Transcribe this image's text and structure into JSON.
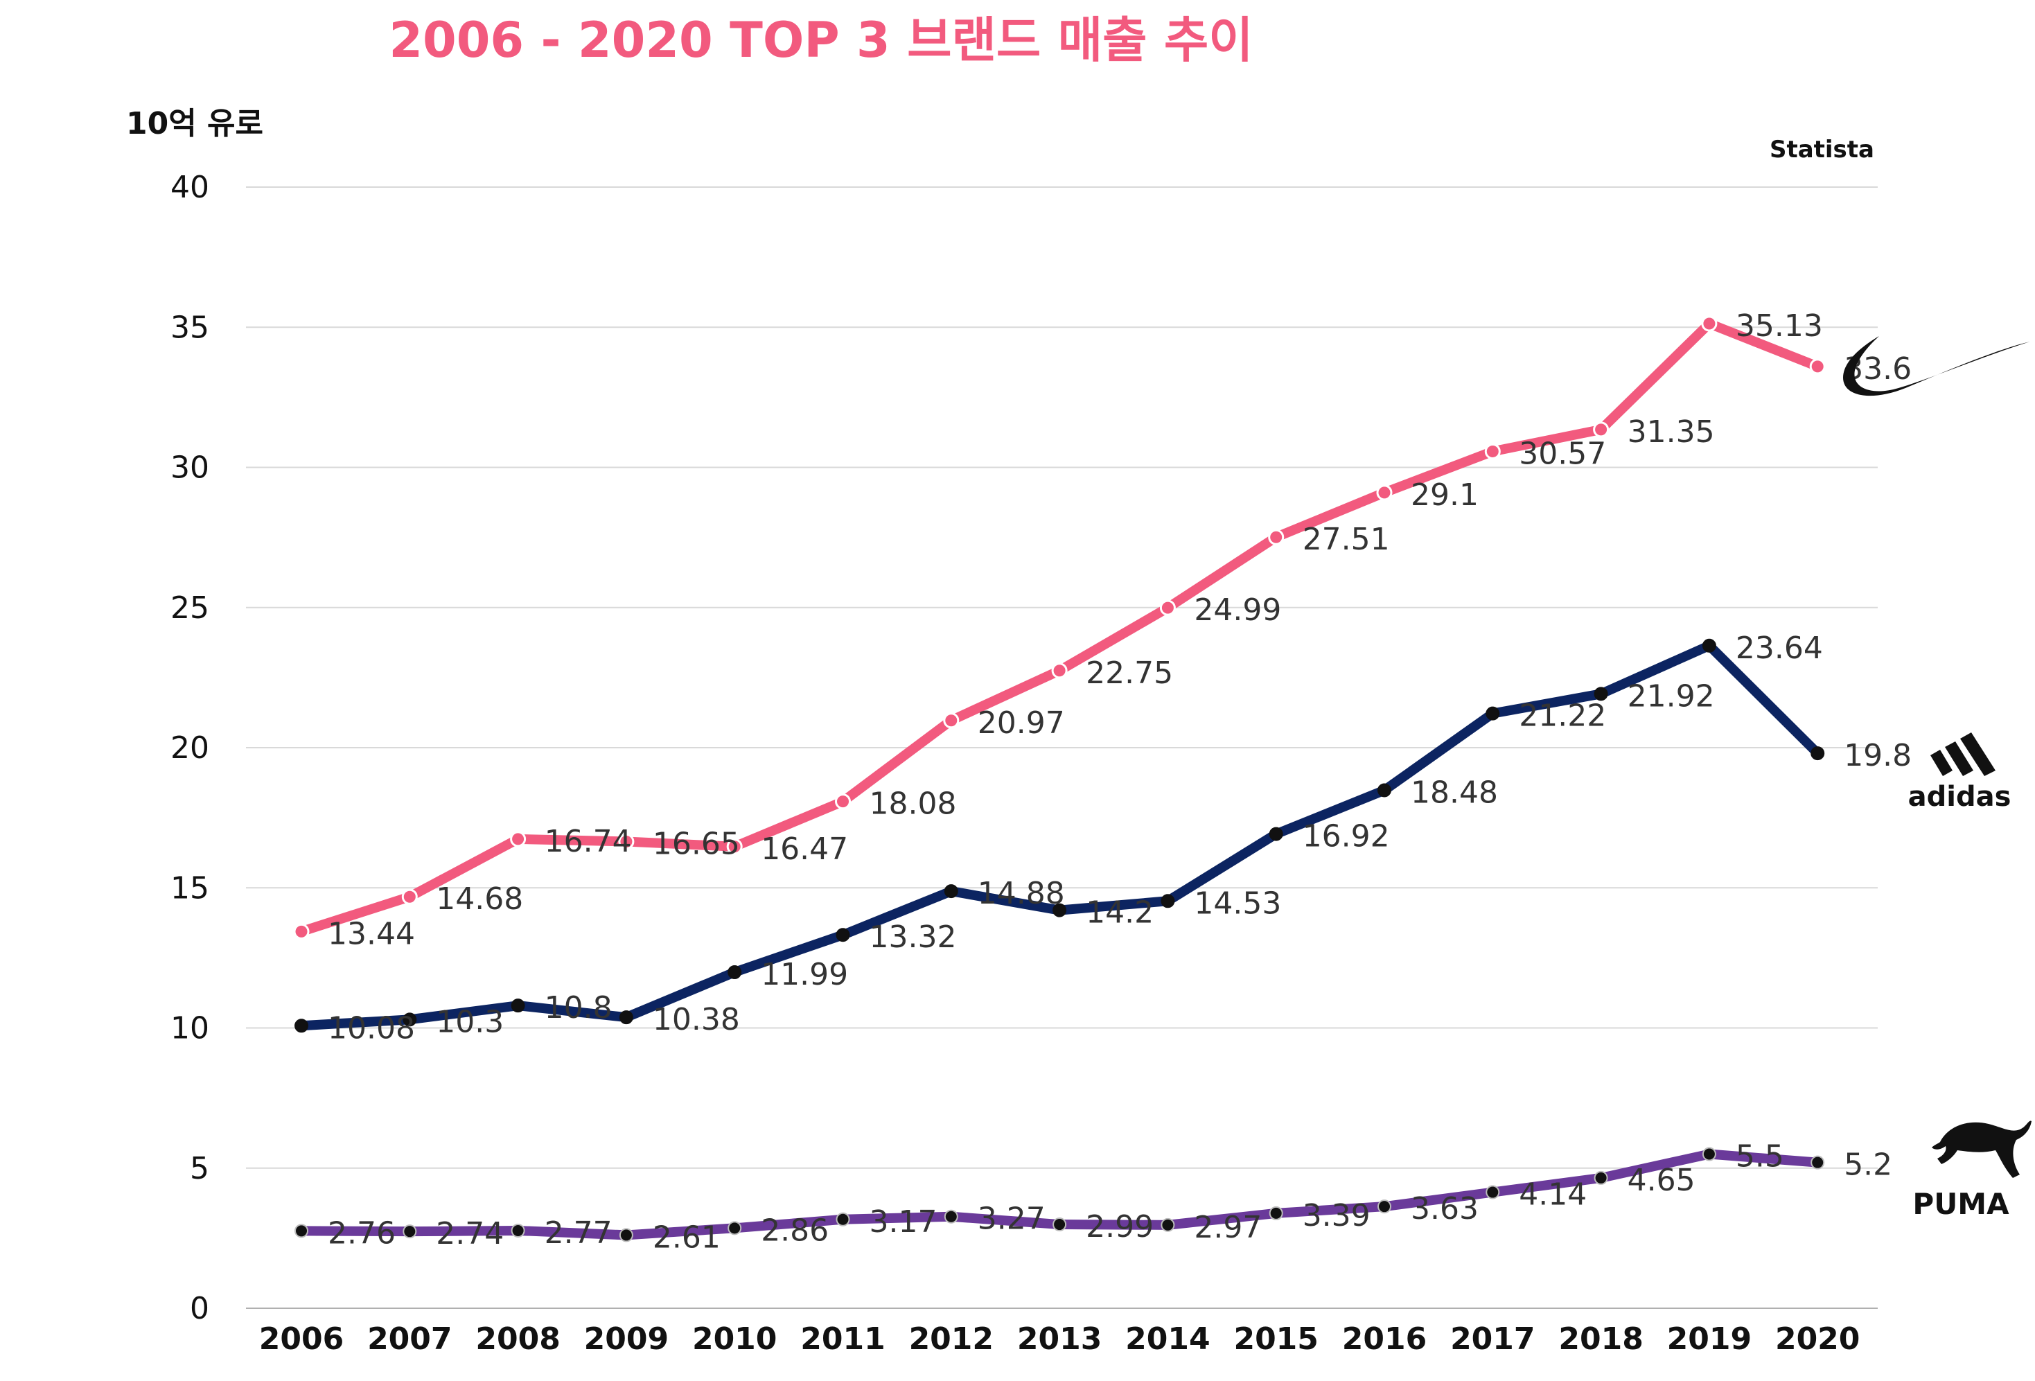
{
  "chart_data": {
    "type": "line",
    "title": "2006 - 2020 TOP 3 브랜드 매출 추이",
    "ylabel": "10억 유로",
    "source": "Statista",
    "ylim": [
      0,
      40
    ],
    "yticks": [
      "0",
      "5",
      "10",
      "15",
      "20",
      "25",
      "30",
      "35",
      "40"
    ],
    "grid": true,
    "x": [
      "2006",
      "2007",
      "2008",
      "2009",
      "2010",
      "2011",
      "2012",
      "2013",
      "2014",
      "2015",
      "2016",
      "2017",
      "2018",
      "2019",
      "2020"
    ],
    "series": [
      {
        "name": "Nike",
        "color": "#f25a7e",
        "values": [
          13.44,
          14.68,
          16.74,
          16.65,
          16.47,
          18.08,
          20.97,
          22.75,
          24.99,
          27.51,
          29.1,
          30.57,
          31.35,
          35.13,
          33.6
        ],
        "labels": [
          "13.44",
          "14.68",
          "16.74",
          "16.65",
          "16.47",
          "18.08",
          "20.97",
          "22.75",
          "24.99",
          "27.51",
          "29.1",
          "30.57",
          "31.35",
          "35.13",
          "33.6"
        ]
      },
      {
        "name": "adidas",
        "color": "#0c2461",
        "values": [
          10.08,
          10.3,
          10.8,
          10.38,
          11.99,
          13.32,
          14.88,
          14.2,
          14.53,
          16.92,
          18.48,
          21.22,
          21.92,
          23.64,
          19.8
        ],
        "labels": [
          "10.08",
          "10.3",
          "10.8",
          "10.38",
          "11.99",
          "13.32",
          "14.88",
          "14.2",
          "14.53",
          "16.92",
          "18.48",
          "21.22",
          "21.92",
          "23.64",
          "19.8"
        ]
      },
      {
        "name": "PUMA",
        "color": "#6a3a9a",
        "values": [
          2.76,
          2.74,
          2.77,
          2.61,
          2.86,
          3.17,
          3.27,
          2.99,
          2.97,
          3.39,
          3.63,
          4.14,
          4.65,
          5.5,
          5.2
        ],
        "labels": [
          "2.76",
          "2.74",
          "2.77",
          "2.61",
          "2.86",
          "3.17",
          "3.27",
          "2.99",
          "2.97",
          "3.39",
          "3.63",
          "4.14",
          "4.65",
          "5.5",
          "5.2"
        ]
      }
    ]
  },
  "brands": {
    "adidas_text": "adidas",
    "puma_text": "PUMA"
  }
}
